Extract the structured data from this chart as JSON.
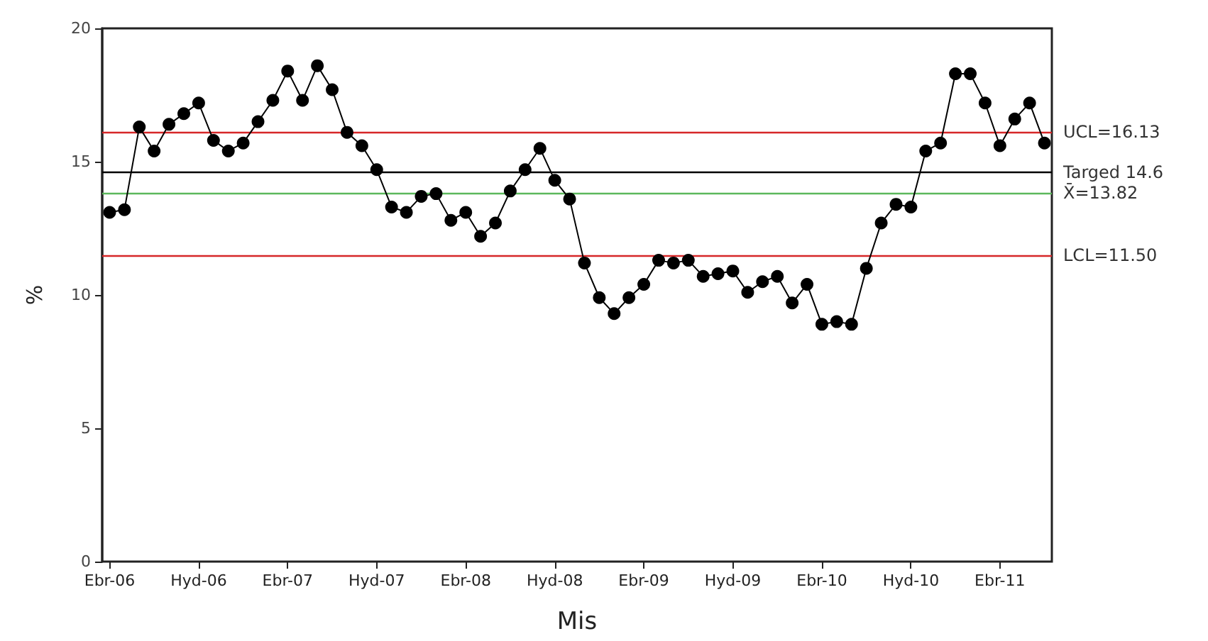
{
  "chart_data": {
    "type": "line",
    "xlabel": "Mis",
    "ylabel": "%",
    "categories": [
      "Ebr-06",
      null,
      null,
      null,
      null,
      null,
      "Hyd-06",
      null,
      null,
      null,
      null,
      null,
      "Ebr-07",
      null,
      null,
      null,
      null,
      null,
      "Hyd-07",
      null,
      null,
      null,
      null,
      null,
      "Ebr-08",
      null,
      null,
      null,
      null,
      null,
      "Hyd-08",
      null,
      null,
      null,
      null,
      null,
      "Ebr-09",
      null,
      null,
      null,
      null,
      null,
      "Hyd-09",
      null,
      null,
      null,
      null,
      null,
      "Ebr-10",
      null,
      null,
      null,
      null,
      null,
      "Hyd-10",
      null,
      null,
      null,
      null,
      null,
      "Ebr-11",
      null,
      null,
      null
    ],
    "series": [
      {
        "color": "#000000",
        "values": [
          13.1,
          13.2,
          16.3,
          15.4,
          16.4,
          16.8,
          17.2,
          15.8,
          15.4,
          15.7,
          16.5,
          17.3,
          18.4,
          17.3,
          18.6,
          17.7,
          16.1,
          15.6,
          14.7,
          13.3,
          13.1,
          13.7,
          13.8,
          12.8,
          13.1,
          12.2,
          12.7,
          13.9,
          14.7,
          15.5,
          14.3,
          13.6,
          11.2,
          9.9,
          9.3,
          9.9,
          10.4,
          11.3,
          11.2,
          11.3,
          10.7,
          10.8,
          10.9,
          10.1,
          10.5,
          10.7,
          9.7,
          10.4,
          8.9,
          9.0,
          8.9,
          11.0,
          12.7,
          13.4,
          13.3,
          15.4,
          15.7,
          18.3,
          18.3,
          17.2,
          15.6,
          16.6,
          17.2,
          15.7
        ]
      }
    ],
    "ylim": [
      0,
      20
    ],
    "yticks": [
      0,
      5,
      10,
      15,
      20
    ],
    "grid": false,
    "marker": "circle",
    "line_style": "solid",
    "ref_lines": [
      {
        "axis": "y",
        "value": 16.13,
        "label": "UCL=16.13",
        "color": "#d62728"
      },
      {
        "axis": "y",
        "value": 14.6,
        "label": "Targed 14.6",
        "color": "#000000"
      },
      {
        "axis": "y",
        "value": 13.82,
        "label": "X̄=13.82",
        "color": "#5cb85c"
      },
      {
        "axis": "y",
        "value": 11.5,
        "label": "LCL=11.50",
        "color": "#d62728"
      }
    ]
  }
}
